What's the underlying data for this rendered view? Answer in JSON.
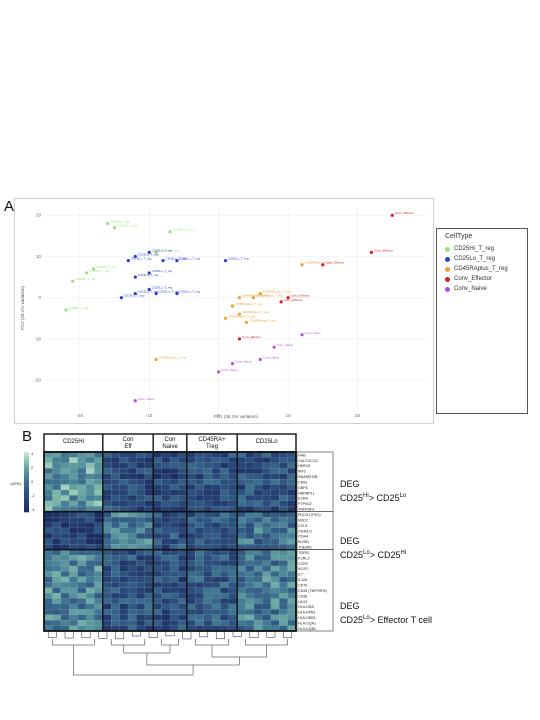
{
  "panel_a": {
    "label": "A",
    "legend": {
      "title": "CellType",
      "items": [
        {
          "label": "CD25Hi_T_reg",
          "color": "#9be07a"
        },
        {
          "label": "CD25Lo_T_reg",
          "color": "#2b3fd0"
        },
        {
          "label": "CD45RAplus_T_reg",
          "color": "#f0a030"
        },
        {
          "label": "Conv_Effector",
          "color": "#d42020"
        },
        {
          "label": "Conv_Naive",
          "color": "#b450e0"
        }
      ]
    }
  },
  "panel_b": {
    "label": "B",
    "col_groups": [
      "CD25Hi",
      "Con Eff",
      "Con Naive",
      "CD45RA+ Treg",
      "CD25Lo"
    ],
    "scale_label": "(ΔFB)",
    "gene_blocks": [
      {
        "genes": [
          "HHB",
          "CALCOCO2",
          "HERC5",
          "IRF2",
          "RNASEH2B",
          "CD63",
          "GBP5",
          "HNRNPLL",
          "IL2RA",
          "PTPN22",
          "TNFRSF4"
        ]
      },
      {
        "genes": [
          "PDCD1 (PD1)",
          "NOD2",
          "CCL5",
          "CD40LG",
          "ITGA4",
          "KLRB1",
          "THEMIS"
        ]
      },
      {
        "genes": [
          "TGFB1",
          "FCRL3",
          "CCR2",
          "IKZF2",
          "IL7",
          "IL12A",
          "CD70",
          "CD28 (TNFRSF6)",
          "CD96",
          "LAG3",
          "HLA-DRA",
          "HLA-DPB1",
          "HLA-DRB1",
          "HLA-DQA1",
          "HLA-DQB1"
        ]
      }
    ],
    "deg_labels": [
      {
        "title": "DEG",
        "sub_pre": "CD25",
        "sub_sup1": "Hi",
        "sub_mid": "> CD25",
        "sub_sup2": "Lo",
        "sub_post": ""
      },
      {
        "title": "DEG",
        "sub_pre": "CD25",
        "sub_sup1": "Lo",
        "sub_mid": "> CD25",
        "sub_sup2": "Hi",
        "sub_post": ""
      },
      {
        "title": "DEG",
        "sub_pre": "CD25",
        "sub_sup1": "Lo",
        "sub_mid": "> Effector T cell",
        "sub_sup2": "",
        "sub_post": ""
      }
    ]
  },
  "chart_data": [
    {
      "type": "scatter",
      "xlabel": "PC1 (34.1% variation)",
      "ylabel": "PC2 (28.1% variation)",
      "xlim": [
        -25,
        30
      ],
      "ylim": [
        -27,
        22
      ],
      "xticks": [
        -20,
        -10,
        0,
        10,
        20
      ],
      "yticks": [
        20,
        10,
        0,
        -10,
        -20
      ],
      "grid": true,
      "legend_position": "right",
      "series": [
        {
          "name": "CD25Hi_T_reg",
          "color": "#9be07a",
          "points": [
            [
              -16,
              18
            ],
            [
              -15,
              17
            ],
            [
              -7,
              16
            ],
            [
              -9,
              11
            ],
            [
              -18,
              7
            ],
            [
              -19,
              6
            ],
            [
              -21,
              4
            ],
            [
              -22,
              -3
            ]
          ]
        },
        {
          "name": "CD25Lo_T_reg",
          "color": "#2b3fd0",
          "points": [
            [
              -10,
              11
            ],
            [
              -12,
              10
            ],
            [
              -8,
              9
            ],
            [
              -13,
              9
            ],
            [
              -6,
              9
            ],
            [
              1,
              9
            ],
            [
              -10,
              6
            ],
            [
              -12,
              5
            ],
            [
              -10,
              2
            ],
            [
              -12,
              1
            ],
            [
              -9,
              1
            ],
            [
              -6,
              1
            ],
            [
              -14,
              0
            ]
          ]
        },
        {
          "name": "CD45RAplus_T_reg",
          "color": "#f0a030",
          "points": [
            [
              12,
              8
            ],
            [
              6,
              1
            ],
            [
              5,
              0
            ],
            [
              3,
              0
            ],
            [
              2,
              -2
            ],
            [
              3,
              -4
            ],
            [
              4,
              -6
            ],
            [
              1,
              -5
            ],
            [
              -9,
              -15
            ]
          ]
        },
        {
          "name": "Conv_Effector",
          "color": "#d42020",
          "points": [
            [
              25,
              20
            ],
            [
              22,
              11
            ],
            [
              15,
              8
            ],
            [
              10,
              0
            ],
            [
              9,
              -1
            ],
            [
              3,
              -10
            ]
          ]
        },
        {
          "name": "Conv_Naive",
          "color": "#b450e0",
          "points": [
            [
              12,
              -9
            ],
            [
              8,
              -12
            ],
            [
              6,
              -15
            ],
            [
              2,
              -16
            ],
            [
              0,
              -18
            ],
            [
              -12,
              -25
            ]
          ]
        }
      ]
    },
    {
      "type": "heatmap",
      "colorbar_ticks": [
        4,
        2,
        0,
        -2,
        -4
      ],
      "col_groups": [
        "CD25Hi",
        "Con Eff",
        "Con Naive",
        "CD45RA+ Treg",
        "CD25Lo"
      ],
      "col_group_sizes": [
        7,
        6,
        4,
        6,
        7
      ],
      "row_blocks": [
        11,
        7,
        15
      ]
    }
  ]
}
